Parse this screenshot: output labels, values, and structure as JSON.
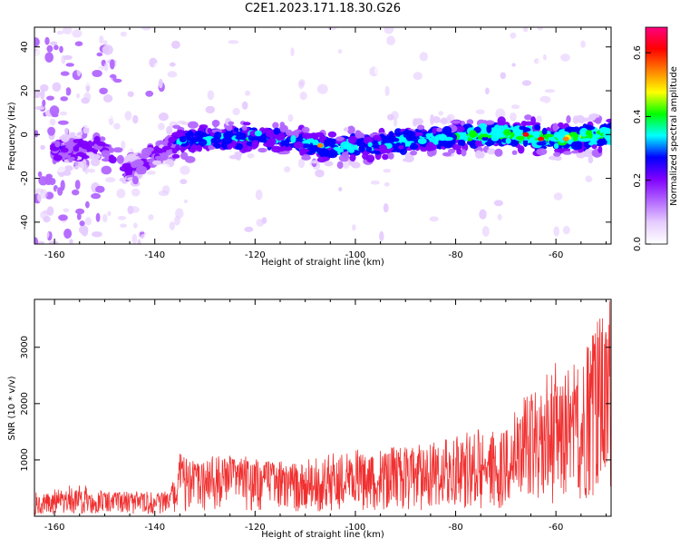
{
  "title": "C2E1.2023.171.18.30.G26",
  "colors": {
    "snr_line": "#f03030",
    "colormap": [
      "#ffffff",
      "#e6ccff",
      "#b266ff",
      "#7f00ff",
      "#0000ff",
      "#00ffff",
      "#00ff00",
      "#ffff00",
      "#ff8000",
      "#ff0000",
      "#ff0080"
    ]
  },
  "chart_data": [
    {
      "type": "heatmap",
      "title": "",
      "xlabel": "Height of straight line (km)",
      "ylabel": "Frequency (Hz)",
      "xlim": [
        -164,
        -49
      ],
      "ylim": [
        -50,
        49
      ],
      "xticks": [
        -160,
        -140,
        -120,
        -100,
        -80,
        -60
      ],
      "yticks": [
        -40,
        -20,
        0,
        20,
        40
      ],
      "colorbar": {
        "label": "Normalized spectral amplitude",
        "range": [
          0,
          0.68
        ],
        "ticks": [
          0.0,
          0.2,
          0.4,
          0.6
        ]
      },
      "ridge": [
        {
          "x": -156,
          "y": -7
        },
        {
          "x": -150,
          "y": -6
        },
        {
          "x": -145,
          "y": -16
        },
        {
          "x": -135,
          "y": -3
        },
        {
          "x": -120,
          "y": -1
        },
        {
          "x": -110,
          "y": -4
        },
        {
          "x": -105,
          "y": -6
        },
        {
          "x": -100,
          "y": -5
        },
        {
          "x": -90,
          "y": -3
        },
        {
          "x": -80,
          "y": -1
        },
        {
          "x": -70,
          "y": 0
        },
        {
          "x": -60,
          "y": -2
        },
        {
          "x": -50,
          "y": 0
        }
      ],
      "peaks": [
        {
          "x": -107,
          "y": -5,
          "value": 0.55
        },
        {
          "x": -66,
          "y": 0,
          "value": 0.62
        },
        {
          "x": -63,
          "y": -2,
          "value": 0.58
        },
        {
          "x": -58,
          "y": -2,
          "value": 0.52
        }
      ]
    },
    {
      "type": "line",
      "title": "",
      "xlabel": "Height of straight line (km)",
      "ylabel": "SNR (10 * v/v)",
      "xlim": [
        -164,
        -49
      ],
      "ylim": [
        0,
        3850
      ],
      "xticks": [
        -160,
        -140,
        -120,
        -100,
        -80,
        -60
      ],
      "yticks": [
        1000,
        2000,
        3000
      ],
      "series": [
        {
          "x": [
            -164,
            -160,
            -155,
            -150,
            -145,
            -140,
            -137,
            -135,
            -133,
            -130,
            -125,
            -120,
            -115,
            -110,
            -105,
            -100,
            -95,
            -90,
            -85,
            -80,
            -75,
            -70,
            -66,
            -63,
            -60,
            -57,
            -55,
            -52,
            -50,
            -49
          ],
          "y": [
            210,
            240,
            280,
            260,
            250,
            240,
            250,
            620,
            560,
            600,
            640,
            620,
            580,
            560,
            590,
            640,
            680,
            700,
            750,
            760,
            820,
            940,
            1100,
            1300,
            1450,
            1350,
            1700,
            2300,
            2100,
            2600
          ],
          "peak": [
            420,
            480,
            600,
            430,
            440,
            450,
            460,
            1150,
            1000,
            1050,
            1100,
            1050,
            980,
            1000,
            1150,
            1180,
            1240,
            1250,
            1350,
            1420,
            1580,
            1760,
            2150,
            2450,
            2750,
            2600,
            2950,
            3600,
            3300,
            3800
          ]
        }
      ]
    }
  ]
}
